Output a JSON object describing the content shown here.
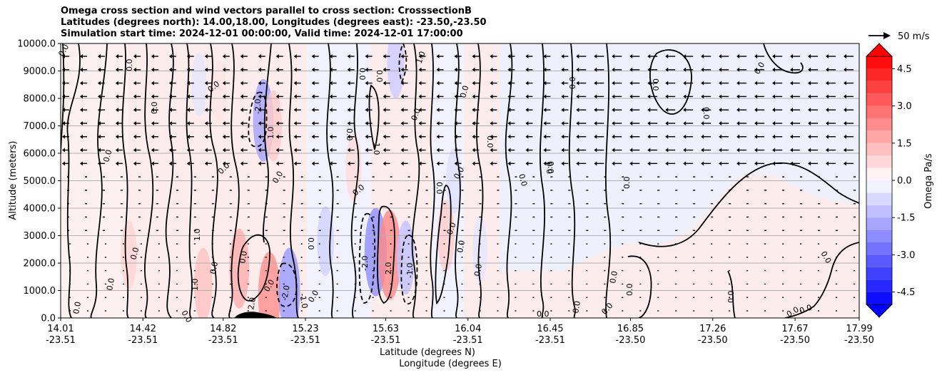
{
  "title": {
    "line1": "Omega cross section and wind vectors parallel to cross section: CrosssectionB",
    "line2": "Latitudes (degrees north): 14.00,18.00, Longitudes (degrees east): -23.50,-23.50",
    "line3": "Simulation start time: 2024-12-01 00:00:00, Valid time: 2024-12-01 17:00:00"
  },
  "chart_data": {
    "type": "contour",
    "ylabel": "Altitude (meters)",
    "xlabel_line1": "Latitude (degrees N)",
    "xlabel_line2": "Longitude (degrees E)",
    "ylim": [
      0,
      10000
    ],
    "y_ticks": [
      "0.0",
      "1000.0",
      "2000.0",
      "3000.0",
      "4000.0",
      "5000.0",
      "6000.0",
      "7000.0",
      "8000.0",
      "9000.0",
      "10000.0"
    ],
    "x_ticks": [
      {
        "lat": "14.01",
        "lon": "-23.51"
      },
      {
        "lat": "14.42",
        "lon": "-23.51"
      },
      {
        "lat": "14.82",
        "lon": "-23.51"
      },
      {
        "lat": "15.23",
        "lon": "-23.51"
      },
      {
        "lat": "15.63",
        "lon": "-23.51"
      },
      {
        "lat": "16.04",
        "lon": "-23.51"
      },
      {
        "lat": "16.45",
        "lon": "-23.51"
      },
      {
        "lat": "16.85",
        "lon": "-23.50"
      },
      {
        "lat": "17.26",
        "lon": "-23.50"
      },
      {
        "lat": "17.67",
        "lon": "-23.50"
      },
      {
        "lat": "17.99",
        "lon": "-23.50"
      }
    ],
    "grid": "horizontal",
    "colorbar": {
      "label": "Omega Pa/s",
      "range": [
        -5.0,
        5.0
      ],
      "ticks": [
        "-4.5",
        "-3.0",
        "-1.5",
        "0.0",
        "1.5",
        "3.0",
        "4.5"
      ],
      "extend": "both",
      "low_color": "#0000ff",
      "high_color": "#ff0000"
    },
    "vector_key": {
      "label": "50 m/s"
    },
    "contour_labels": [
      "0.0",
      "1.0",
      "-1.0",
      "2.0",
      "-2.0"
    ],
    "shaded_cells": [
      {
        "lat": 14.35,
        "alt": 2300,
        "omega": 0.8
      },
      {
        "lat": 14.72,
        "alt": 1200,
        "omega": 1.2
      },
      {
        "lat": 14.9,
        "alt": 1800,
        "omega": 1.6
      },
      {
        "lat": 15.05,
        "alt": 800,
        "omega": 2.2
      },
      {
        "lat": 15.02,
        "alt": 7200,
        "omega": -1.8
      },
      {
        "lat": 15.07,
        "alt": 7000,
        "omega": 1.0
      },
      {
        "lat": 15.15,
        "alt": 1000,
        "omega": -2.0
      },
      {
        "lat": 15.33,
        "alt": 2800,
        "omega": -0.9
      },
      {
        "lat": 15.47,
        "alt": 5500,
        "omega": 0.7
      },
      {
        "lat": 15.58,
        "alt": 2400,
        "omega": -2.2
      },
      {
        "lat": 15.65,
        "alt": 2300,
        "omega": 2.3
      },
      {
        "lat": 15.73,
        "alt": 2200,
        "omega": -1.2
      },
      {
        "lat": 15.68,
        "alt": 9300,
        "omega": -1.0
      },
      {
        "lat": 15.93,
        "alt": 3000,
        "omega": 1.0
      },
      {
        "lat": 15.97,
        "alt": 5000,
        "omega": -0.6
      },
      {
        "lat": 16.1,
        "alt": 2500,
        "omega": -0.5
      },
      {
        "lat": 14.7,
        "alt": 8500,
        "omega": -0.5
      },
      {
        "lat": 14.8,
        "alt": 8200,
        "omega": 0.5
      }
    ]
  }
}
